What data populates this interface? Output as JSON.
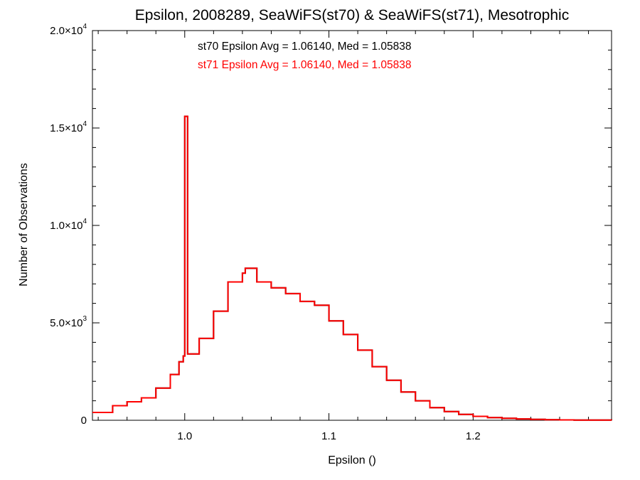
{
  "chart_data": {
    "type": "line",
    "title": "Epsilon, 2008289, SeaWiFS(st70) & SeaWiFS(st71), Mesotrophic",
    "xlabel": "Epsilon ()",
    "ylabel": "Number of Observations",
    "xlim": [
      0.936,
      1.296
    ],
    "ylim": [
      0,
      20000
    ],
    "x_ticks": [
      {
        "value": 1.0,
        "label": "1.0"
      },
      {
        "value": 1.1,
        "label": "1.1"
      },
      {
        "value": 1.2,
        "label": "1.2"
      }
    ],
    "y_ticks": [
      {
        "value": 0,
        "mantissa": "0",
        "exponent": ""
      },
      {
        "value": 5000,
        "mantissa": "5.0×10",
        "exponent": "3"
      },
      {
        "value": 10000,
        "mantissa": "1.0×10",
        "exponent": "4"
      },
      {
        "value": 15000,
        "mantissa": "1.5×10",
        "exponent": "4"
      },
      {
        "value": 20000,
        "mantissa": "2.0×10",
        "exponent": "4"
      }
    ],
    "annotations": [
      {
        "text": "st70 Epsilon Avg = 1.06140, Med = 1.05838",
        "color": "#000000"
      },
      {
        "text": "st71 Epsilon Avg = 1.06140, Med = 1.05838",
        "color": "#ff0000"
      }
    ],
    "grid": false,
    "step_style": "histogram",
    "series": [
      {
        "color": "#000000",
        "points": [
          [
            0.936,
            400
          ],
          [
            0.95,
            750
          ],
          [
            0.96,
            950
          ],
          [
            0.97,
            1150
          ],
          [
            0.98,
            1650
          ],
          [
            0.99,
            2350
          ],
          [
            0.996,
            3000
          ],
          [
            0.999,
            3300
          ],
          [
            1.0,
            15600
          ],
          [
            1.002,
            3400
          ],
          [
            1.01,
            4200
          ],
          [
            1.02,
            5600
          ],
          [
            1.03,
            7100
          ],
          [
            1.04,
            7550
          ],
          [
            1.042,
            7800
          ],
          [
            1.05,
            7100
          ],
          [
            1.06,
            6800
          ],
          [
            1.07,
            6500
          ],
          [
            1.08,
            6100
          ],
          [
            1.09,
            5900
          ],
          [
            1.1,
            5100
          ],
          [
            1.11,
            4400
          ],
          [
            1.12,
            3600
          ],
          [
            1.13,
            2750
          ],
          [
            1.14,
            2050
          ],
          [
            1.15,
            1450
          ],
          [
            1.16,
            1000
          ],
          [
            1.17,
            650
          ],
          [
            1.18,
            450
          ],
          [
            1.19,
            300
          ],
          [
            1.2,
            200
          ],
          [
            1.21,
            140
          ],
          [
            1.22,
            100
          ],
          [
            1.23,
            70
          ],
          [
            1.24,
            45
          ],
          [
            1.25,
            30
          ],
          [
            1.26,
            20
          ],
          [
            1.27,
            12
          ],
          [
            1.28,
            8
          ],
          [
            1.296,
            5
          ]
        ]
      },
      {
        "color": "#ff0000",
        "points": [
          [
            0.936,
            400
          ],
          [
            0.95,
            750
          ],
          [
            0.96,
            950
          ],
          [
            0.97,
            1150
          ],
          [
            0.98,
            1650
          ],
          [
            0.99,
            2350
          ],
          [
            0.996,
            3000
          ],
          [
            0.999,
            3300
          ],
          [
            1.0,
            15600
          ],
          [
            1.002,
            3400
          ],
          [
            1.01,
            4200
          ],
          [
            1.02,
            5600
          ],
          [
            1.03,
            7100
          ],
          [
            1.04,
            7550
          ],
          [
            1.042,
            7800
          ],
          [
            1.05,
            7100
          ],
          [
            1.06,
            6800
          ],
          [
            1.07,
            6500
          ],
          [
            1.08,
            6100
          ],
          [
            1.09,
            5900
          ],
          [
            1.1,
            5100
          ],
          [
            1.11,
            4400
          ],
          [
            1.12,
            3600
          ],
          [
            1.13,
            2750
          ],
          [
            1.14,
            2050
          ],
          [
            1.15,
            1450
          ],
          [
            1.16,
            1000
          ],
          [
            1.17,
            650
          ],
          [
            1.18,
            450
          ],
          [
            1.19,
            300
          ],
          [
            1.2,
            200
          ],
          [
            1.21,
            140
          ],
          [
            1.22,
            100
          ],
          [
            1.23,
            70
          ],
          [
            1.24,
            45
          ],
          [
            1.25,
            30
          ],
          [
            1.26,
            20
          ],
          [
            1.27,
            12
          ],
          [
            1.28,
            8
          ],
          [
            1.296,
            5
          ]
        ]
      }
    ]
  }
}
